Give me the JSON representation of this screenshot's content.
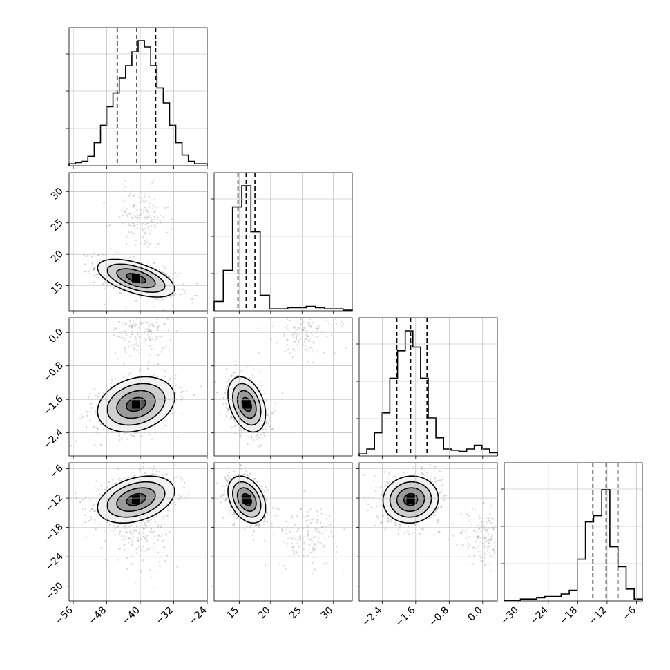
{
  "chart_data": {
    "type": "corner",
    "n_params": 4,
    "params": [
      {
        "range": [
          -57,
          -24
        ],
        "ticks": [
          -56,
          -48,
          -40,
          -32,
          -24
        ],
        "tick_labels": [
          "−56",
          "−48",
          "−40",
          "−32",
          "−24"
        ],
        "center": -41,
        "sd": 4.6,
        "quantiles": [
          -45.5,
          -40.8,
          -36.3
        ],
        "hist": [
          0.01,
          0.02,
          0.03,
          0.07,
          0.18,
          0.32,
          0.47,
          0.58,
          0.7,
          0.8,
          0.91,
          1.0,
          0.95,
          0.8,
          0.62,
          0.5,
          0.32,
          0.18,
          0.08,
          0.03,
          0.01,
          0.01
        ]
      },
      {
        "range": [
          11,
          33
        ],
        "ticks": [
          15,
          20,
          25,
          30
        ],
        "tick_labels": [
          "15",
          "20",
          "25",
          "30"
        ],
        "center": 16.2,
        "sd": 1.5,
        "quantiles": [
          14.8,
          16.1,
          17.5
        ],
        "hist": [
          0.07,
          0.32,
          0.83,
          1.0,
          0.63,
          0.12,
          0.01,
          0.01,
          0.02,
          0.02,
          0.03,
          0.02,
          0.01,
          0.01,
          0.0
        ]
      },
      {
        "range": [
          -2.95,
          0.35
        ],
        "ticks": [
          -2.4,
          -1.6,
          -0.8,
          0.0
        ],
        "tick_labels": [
          "−2.4",
          "−1.6",
          "−0.8",
          "0.0"
        ],
        "center": -1.72,
        "sd": 0.33,
        "quantiles": [
          -2.05,
          -1.72,
          -1.33
        ],
        "hist": [
          0.01,
          0.05,
          0.18,
          0.34,
          0.62,
          0.84,
          1.0,
          0.87,
          0.62,
          0.3,
          0.14,
          0.05,
          0.04,
          0.03,
          0.05,
          0.08,
          0.05,
          0.02
        ]
      },
      {
        "range": [
          -33,
          -4.8
        ],
        "ticks": [
          -30,
          -24,
          -18,
          -12,
          -6
        ],
        "tick_labels": [
          "−30",
          "−24",
          "−18",
          "−12",
          "−6"
        ],
        "center": -12.3,
        "sd": 2.4,
        "quantiles": [
          -14.9,
          -12.2,
          -9.8
        ],
        "hist": [
          0.0,
          0.0,
          0.01,
          0.01,
          0.02,
          0.03,
          0.03,
          0.05,
          0.08,
          0.33,
          0.63,
          0.68,
          0.89,
          0.43,
          0.27,
          0.09,
          0.01
        ]
      }
    ],
    "secondary_mode": {
      "offsets": [
        1.0,
        9.5,
        1.75,
        -7.5
      ],
      "sd": [
        3.4,
        2.5,
        0.3,
        3.0
      ],
      "fraction": 0.08
    },
    "correlations": {
      "0-1": -0.55,
      "0-2": 0.25,
      "0-3": 0.35,
      "1-2": -0.35,
      "1-3": -0.35,
      "2-3": 0.05
    },
    "contour_levels": [
      0.5,
      1.0,
      1.5,
      2.0
    ],
    "grid": true,
    "quantile_lines": "dashed"
  }
}
